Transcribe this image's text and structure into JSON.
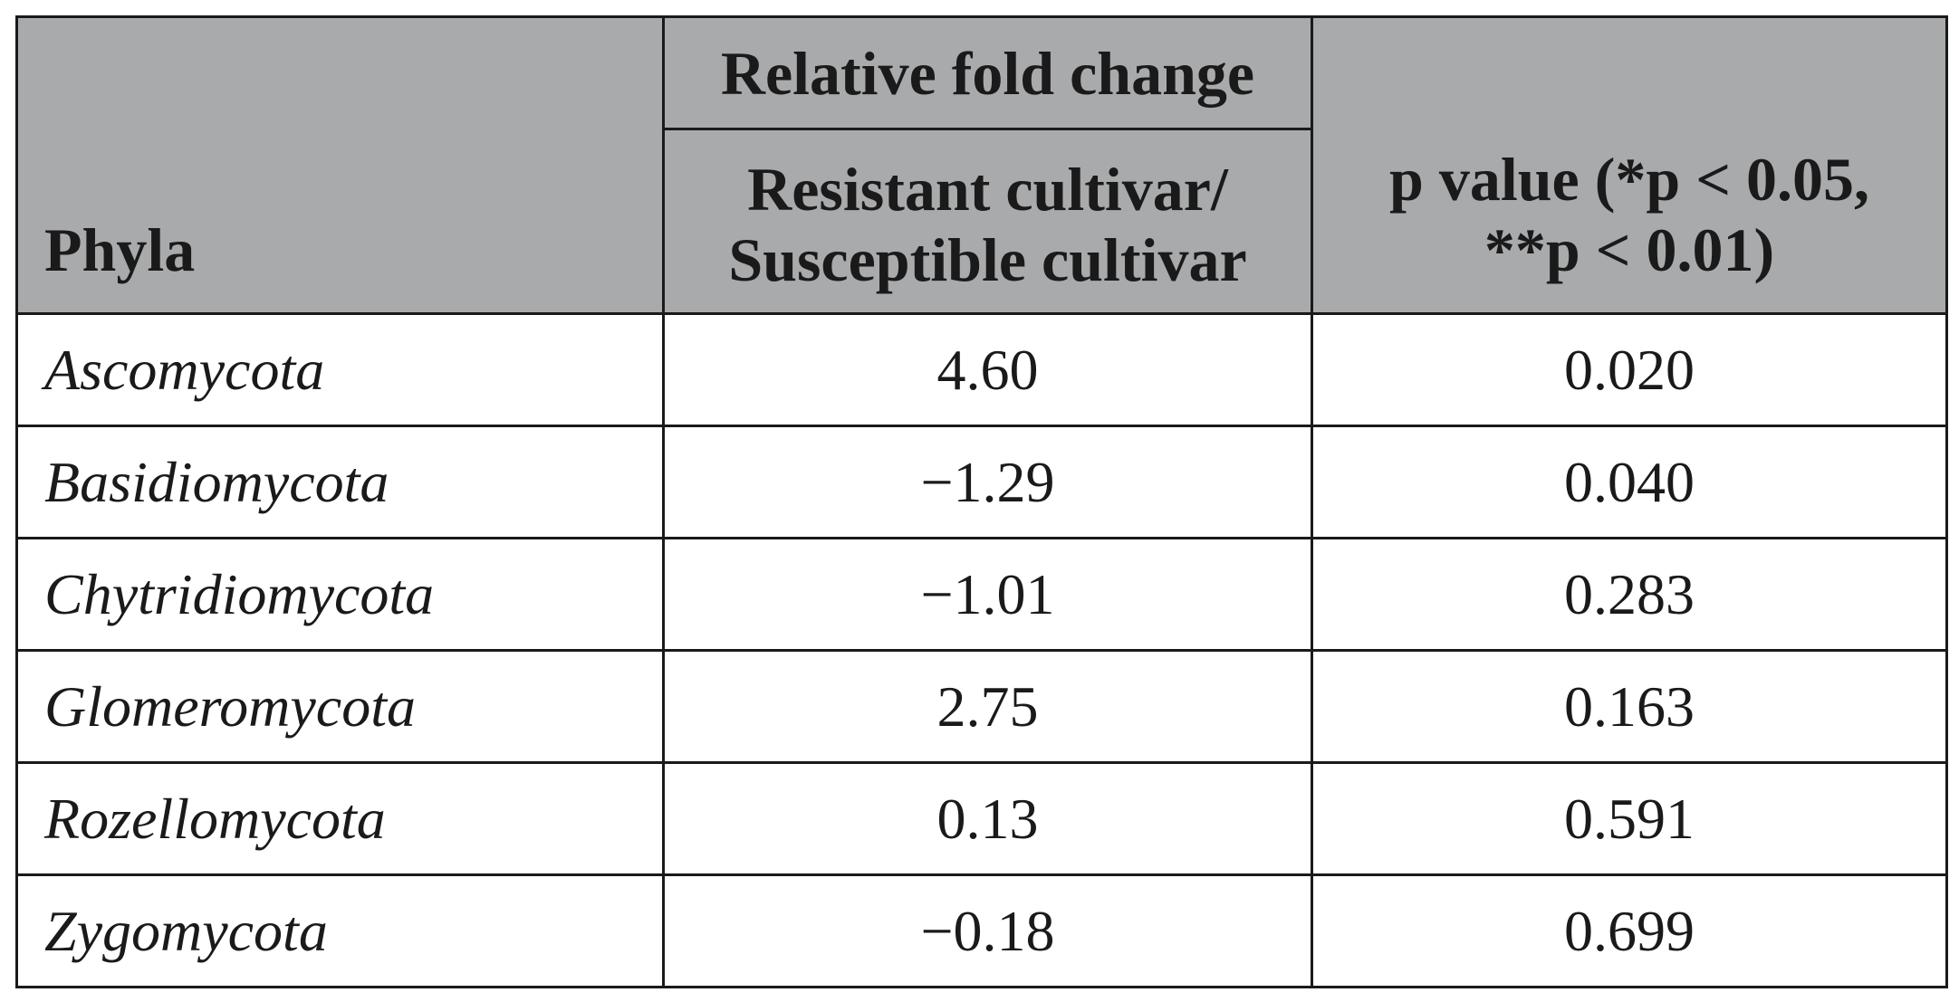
{
  "table": {
    "header": {
      "phyla": "Phyla",
      "group": "Relative fold change",
      "sub_line1": "Resistant cultivar/",
      "sub_line2": "Susceptible cultivar",
      "p_line1": "p value (*p < 0.05,",
      "p_line2": "**p < 0.01)"
    },
    "rows": [
      {
        "phylum": "Ascomycota",
        "fold_change": "4.60",
        "p_value": "0.020"
      },
      {
        "phylum": "Basidiomycota",
        "fold_change": "−1.29",
        "p_value": "0.040"
      },
      {
        "phylum": "Chytridiomycota",
        "fold_change": "−1.01",
        "p_value": "0.283"
      },
      {
        "phylum": "Glomeromycota",
        "fold_change": "2.75",
        "p_value": "0.163"
      },
      {
        "phylum": "Rozellomycota",
        "fold_change": "0.13",
        "p_value": "0.591"
      },
      {
        "phylum": "Zygomycota",
        "fold_change": "−0.18",
        "p_value": "0.699"
      }
    ]
  },
  "colors": {
    "header_bg": "#a9aaac",
    "border": "#1a1a1a",
    "text": "#1a1a1a"
  }
}
